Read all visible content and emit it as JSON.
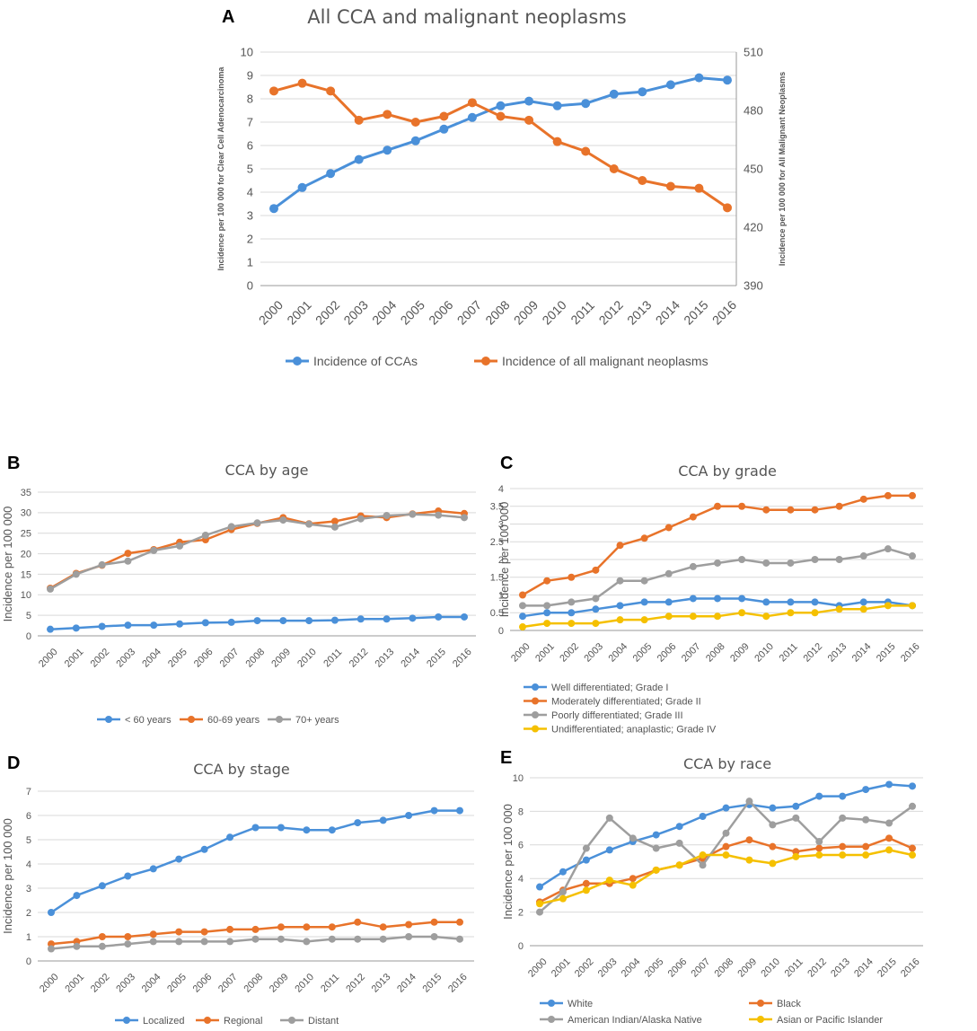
{
  "chart_data": [
    {
      "id": "A",
      "letter": "A",
      "type": "line",
      "title": "All CCA   and malignant neoplasms",
      "xlabel": "",
      "ylabel": "Incidence per 100 000 for Clear Cell Adenocarcinoma",
      "ylabel_right": "Incidence per 100 000 for All Malignant Neoplasms",
      "categories": [
        "2000",
        "2001",
        "2002",
        "2003",
        "2004",
        "2005",
        "2006",
        "2007",
        "2008",
        "2009",
        "2010",
        "2011",
        "2012",
        "2013",
        "2014",
        "2015",
        "2016"
      ],
      "ylim": [
        0,
        10
      ],
      "yticks": [
        0,
        1,
        2,
        3,
        4,
        5,
        6,
        7,
        8,
        9,
        10
      ],
      "ylim_right": [
        390,
        510
      ],
      "yticks_right": [
        390,
        420,
        450,
        480,
        510
      ],
      "grid": true,
      "legend_position": "bottom",
      "series": [
        {
          "name": "Incidence of CCAs",
          "axis": "left",
          "color": "#4a90d9",
          "values": [
            3.3,
            4.2,
            4.8,
            5.4,
            5.8,
            6.2,
            6.7,
            7.2,
            7.7,
            7.9,
            7.7,
            7.8,
            8.2,
            8.3,
            8.6,
            8.9,
            8.8
          ]
        },
        {
          "name": "Incidence of  all malignant neoplasms",
          "axis": "right",
          "color": "#e8732a",
          "values": [
            490,
            494,
            490,
            475,
            478,
            474,
            477,
            484,
            477,
            475,
            464,
            459,
            450,
            444,
            441,
            440,
            430
          ]
        }
      ]
    },
    {
      "id": "B",
      "letter": "B",
      "type": "line",
      "title": "CCA   by age",
      "xlabel": "",
      "ylabel": "Incidence per 100 000",
      "categories": [
        "2000",
        "2001",
        "2002",
        "2003",
        "2004",
        "2005",
        "2006",
        "2007",
        "2008",
        "2009",
        "2010",
        "2011",
        "2012",
        "2013",
        "2014",
        "2015",
        "2016"
      ],
      "ylim": [
        0,
        35
      ],
      "yticks": [
        0,
        5,
        10,
        15,
        20,
        25,
        30,
        35
      ],
      "grid": true,
      "legend_position": "bottom",
      "series": [
        {
          "name": "< 60 years",
          "color": "#4a90d9",
          "values": [
            1.6,
            1.9,
            2.3,
            2.6,
            2.6,
            2.9,
            3.2,
            3.3,
            3.7,
            3.7,
            3.7,
            3.8,
            4.1,
            4.1,
            4.3,
            4.6,
            4.6
          ]
        },
        {
          "name": "60-69 years",
          "color": "#e8732a",
          "values": [
            11.6,
            15.2,
            17.2,
            20.1,
            21.0,
            22.8,
            23.4,
            25.9,
            27.4,
            28.8,
            27.3,
            27.9,
            29.2,
            28.8,
            29.7,
            30.4,
            29.8
          ]
        },
        {
          "name": "70+ years",
          "color": "#9e9e9e",
          "values": [
            11.4,
            15.0,
            17.3,
            18.2,
            20.8,
            21.9,
            24.5,
            26.6,
            27.5,
            28.2,
            27.2,
            26.5,
            28.5,
            29.3,
            29.6,
            29.4,
            28.8
          ]
        }
      ]
    },
    {
      "id": "C",
      "letter": "C",
      "type": "line",
      "title": "CCA   by grade",
      "xlabel": "",
      "ylabel": "Incidence per 100 000",
      "categories": [
        "2000",
        "2001",
        "2002",
        "2003",
        "2004",
        "2005",
        "2006",
        "2007",
        "2008",
        "2009",
        "2010",
        "2011",
        "2012",
        "2013",
        "2014",
        "2015",
        "2016"
      ],
      "ylim": [
        0,
        4
      ],
      "yticks": [
        0,
        0.5,
        1,
        1.5,
        2,
        2.5,
        3,
        3.5,
        4
      ],
      "ytick_labels": [
        "0",
        "0.5",
        "1",
        "1.5",
        "2",
        "2.5",
        "3",
        "3.5",
        "4"
      ],
      "grid": true,
      "legend_position": "bottom",
      "series": [
        {
          "name": "Well differentiated; Grade I",
          "color": "#4a90d9",
          "values": [
            0.4,
            0.5,
            0.5,
            0.6,
            0.7,
            0.8,
            0.8,
            0.9,
            0.9,
            0.9,
            0.8,
            0.8,
            0.8,
            0.7,
            0.8,
            0.8,
            0.7
          ]
        },
        {
          "name": "Moderately differentiated; Grade II",
          "color": "#e8732a",
          "values": [
            1.0,
            1.4,
            1.5,
            1.7,
            2.4,
            2.6,
            2.9,
            3.2,
            3.5,
            3.5,
            3.4,
            3.4,
            3.4,
            3.5,
            3.7,
            3.8,
            3.8
          ]
        },
        {
          "name": "Poorly differentiated; Grade III",
          "color": "#9e9e9e",
          "values": [
            0.7,
            0.7,
            0.8,
            0.9,
            1.4,
            1.4,
            1.6,
            1.8,
            1.9,
            2.0,
            1.9,
            1.9,
            2.0,
            2.0,
            2.1,
            2.3,
            2.1
          ]
        },
        {
          "name": "Undifferentiated; anaplastic; Grade IV",
          "color": "#f5c000",
          "values": [
            0.1,
            0.2,
            0.2,
            0.2,
            0.3,
            0.3,
            0.4,
            0.4,
            0.4,
            0.5,
            0.4,
            0.5,
            0.5,
            0.6,
            0.6,
            0.7,
            0.7
          ]
        }
      ]
    },
    {
      "id": "D",
      "letter": "D",
      "type": "line",
      "title": "CCA   by stage",
      "xlabel": "",
      "ylabel": "Incidence per 100 000",
      "categories": [
        "2000",
        "2001",
        "2002",
        "2003",
        "2004",
        "2005",
        "2006",
        "2007",
        "2008",
        "2009",
        "2010",
        "2011",
        "2012",
        "2013",
        "2014",
        "2015",
        "2016"
      ],
      "ylim": [
        0,
        7
      ],
      "yticks": [
        0,
        1,
        2,
        3,
        4,
        5,
        6,
        7
      ],
      "grid": true,
      "legend_position": "bottom",
      "series": [
        {
          "name": "Localized",
          "color": "#4a90d9",
          "values": [
            2.0,
            2.7,
            3.1,
            3.5,
            3.8,
            4.2,
            4.6,
            5.1,
            5.5,
            5.5,
            5.4,
            5.4,
            5.7,
            5.8,
            6.0,
            6.2,
            6.2
          ]
        },
        {
          "name": "Regional",
          "color": "#e8732a",
          "values": [
            0.7,
            0.8,
            1.0,
            1.0,
            1.1,
            1.2,
            1.2,
            1.3,
            1.3,
            1.4,
            1.4,
            1.4,
            1.6,
            1.4,
            1.5,
            1.6,
            1.6
          ]
        },
        {
          "name": "Distant",
          "color": "#9e9e9e",
          "values": [
            0.5,
            0.6,
            0.6,
            0.7,
            0.8,
            0.8,
            0.8,
            0.8,
            0.9,
            0.9,
            0.8,
            0.9,
            0.9,
            0.9,
            1.0,
            1.0,
            0.9
          ]
        }
      ]
    },
    {
      "id": "E",
      "letter": "E",
      "type": "line",
      "title": "CCA   by race",
      "xlabel": "",
      "ylabel": "Incidence per 100 000",
      "categories": [
        "2000",
        "2001",
        "2002",
        "2003",
        "2004",
        "2005",
        "2006",
        "2007",
        "2008",
        "2009",
        "2010",
        "2011",
        "2012",
        "2013",
        "2014",
        "2015",
        "2016"
      ],
      "ylim": [
        0,
        10
      ],
      "yticks": [
        0,
        2,
        4,
        6,
        8,
        10
      ],
      "grid": true,
      "legend_position": "bottom",
      "series": [
        {
          "name": "White",
          "color": "#4a90d9",
          "values": [
            3.5,
            4.4,
            5.1,
            5.7,
            6.2,
            6.6,
            7.1,
            7.7,
            8.2,
            8.4,
            8.2,
            8.3,
            8.9,
            8.9,
            9.3,
            9.6,
            9.5
          ]
        },
        {
          "name": "Black",
          "color": "#e8732a",
          "values": [
            2.6,
            3.3,
            3.7,
            3.7,
            4.0,
            4.5,
            4.8,
            5.2,
            5.9,
            6.3,
            5.9,
            5.6,
            5.8,
            5.9,
            5.9,
            6.4,
            5.8
          ]
        },
        {
          "name": "American Indian/Alaska Native",
          "color": "#9e9e9e",
          "values": [
            2.0,
            3.2,
            5.8,
            7.6,
            6.4,
            5.8,
            6.1,
            4.8,
            6.7,
            8.6,
            7.2,
            7.6,
            6.2,
            7.6,
            7.5,
            7.3,
            8.3
          ]
        },
        {
          "name": "Asian or Pacific Islander",
          "color": "#f5c000",
          "values": [
            2.5,
            2.8,
            3.3,
            3.9,
            3.6,
            4.5,
            4.8,
            5.4,
            5.4,
            5.1,
            4.9,
            5.3,
            5.4,
            5.4,
            5.4,
            5.7,
            5.4
          ]
        }
      ]
    }
  ]
}
